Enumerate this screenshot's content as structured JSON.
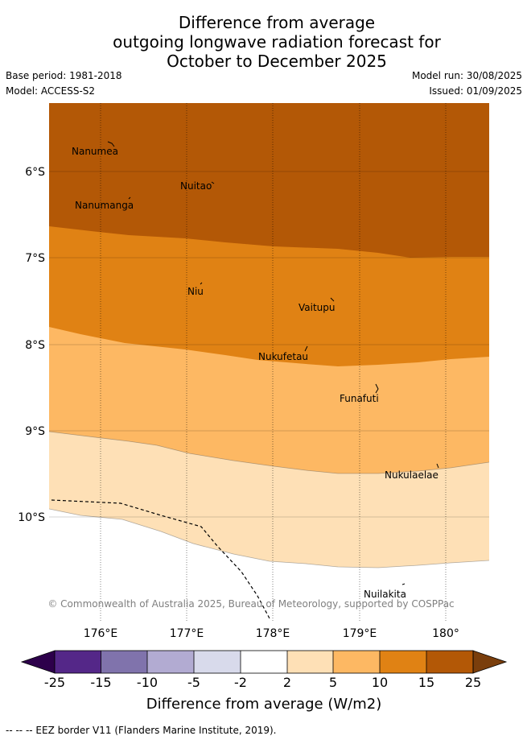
{
  "title": {
    "line1": "Difference from average",
    "line2": "outgoing longwave radiation forecast for",
    "line3": "October to December 2025"
  },
  "meta": {
    "base_period": "Base period: 1981-2018",
    "model": "Model: ACCESS-S2",
    "model_run": "Model run: 30/08/2025",
    "issued": "Issued: 01/09/2025"
  },
  "map": {
    "lat_ticks": [
      "6°S",
      "7°S",
      "8°S",
      "9°S",
      "10°S"
    ],
    "lon_ticks": [
      "176°E",
      "177°E",
      "178°E",
      "179°E",
      "180°"
    ],
    "places": [
      {
        "name": "Nanumea"
      },
      {
        "name": "Nuitao"
      },
      {
        "name": "Nanumanga"
      },
      {
        "name": "Niu"
      },
      {
        "name": "Vaitupu"
      },
      {
        "name": "Nukufetau"
      },
      {
        "name": "Funafuti"
      },
      {
        "name": "Nukulaelae"
      },
      {
        "name": "Nuilakita"
      }
    ],
    "copyright": "© Commonwealth of Australia 2025, Bureau of Meteorology, supported by COSPPac"
  },
  "colors": {
    "c25": "#7a3e0c",
    "c15": "#b35806",
    "c10": "#e08214",
    "c5": "#fdb863",
    "c2": "#fee0b6",
    "c0": "#ffffff",
    "cm2": "#d8daeb",
    "cm5": "#b2abd2",
    "cm10": "#8073ac",
    "cm15": "#542788",
    "cm25": "#2d004b"
  },
  "colorbar": {
    "ticks": [
      "-25",
      "-15",
      "-10",
      "-5",
      "-2",
      "2",
      "5",
      "10",
      "15",
      "25"
    ],
    "label": "Difference from average (W/m2)"
  },
  "footnote": "--  --  -- EEZ border V11 (Flanders Marine Institute, 2019)."
}
